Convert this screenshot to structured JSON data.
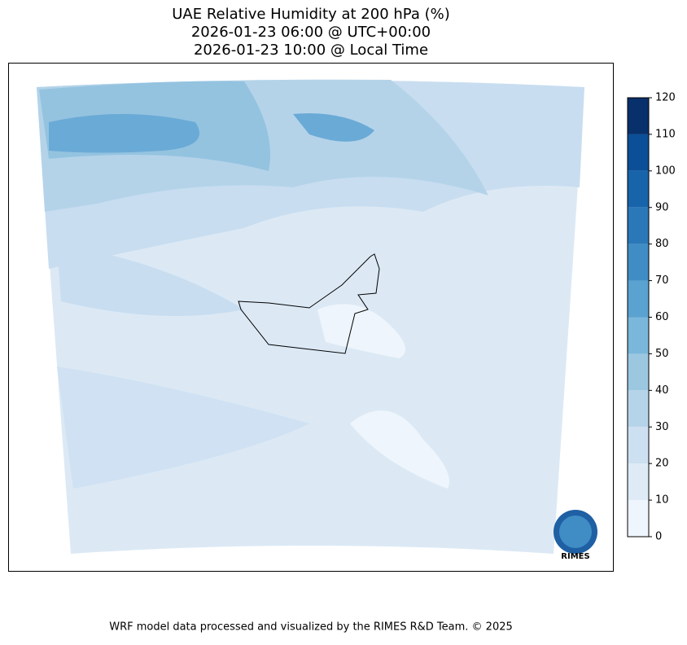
{
  "title": [
    "UAE Relative Humidity at 200 hPa (%)",
    "2026-01-23 06:00 @ UTC+00:00",
    "2026-01-23 10:00 @ Local Time"
  ],
  "colorbar": {
    "lim": [
      0,
      120
    ],
    "ticks": [
      0,
      10,
      20,
      30,
      40,
      50,
      60,
      70,
      80,
      90,
      100,
      110,
      120
    ],
    "colors": [
      "#eef5fc",
      "#deebf7",
      "#cde0f1",
      "#b6d4e9",
      "#9bc7e0",
      "#7ab7da",
      "#5aa2cf",
      "#3f8dc4",
      "#2a78b8",
      "#1764ab",
      "#0a4f97",
      "#08306b"
    ]
  },
  "logo": "RIMES",
  "footer": "WRF model data processed and visualized by the RIMES R&D Team. © 2025"
}
